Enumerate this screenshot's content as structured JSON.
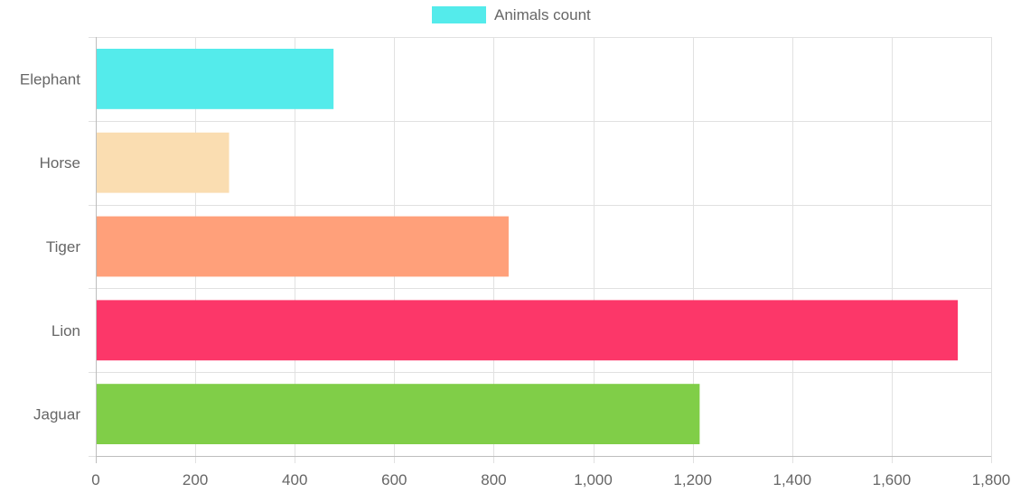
{
  "chart_data": {
    "type": "bar",
    "orientation": "horizontal",
    "categories": [
      "Elephant",
      "Horse",
      "Tiger",
      "Lion",
      "Jaguar"
    ],
    "series": [
      {
        "name": "Animals count",
        "values": [
          478,
          268,
          830,
          1733,
          1214
        ],
        "colors": [
          "#54EBEB",
          "#FADDB1",
          "#FFA07A",
          "#FC3769",
          "#80CE48"
        ]
      }
    ],
    "xlim": [
      0,
      1800
    ],
    "x_ticks": [
      "0",
      "200",
      "400",
      "600",
      "800",
      "1,000",
      "1,200",
      "1,400",
      "1,600",
      "1,800"
    ],
    "x_tick_values": [
      0,
      200,
      400,
      600,
      800,
      1000,
      1200,
      1400,
      1600,
      1800
    ],
    "legend": {
      "label": "Animals count",
      "color": "#54EBEB",
      "position": "top"
    },
    "grid": true
  }
}
